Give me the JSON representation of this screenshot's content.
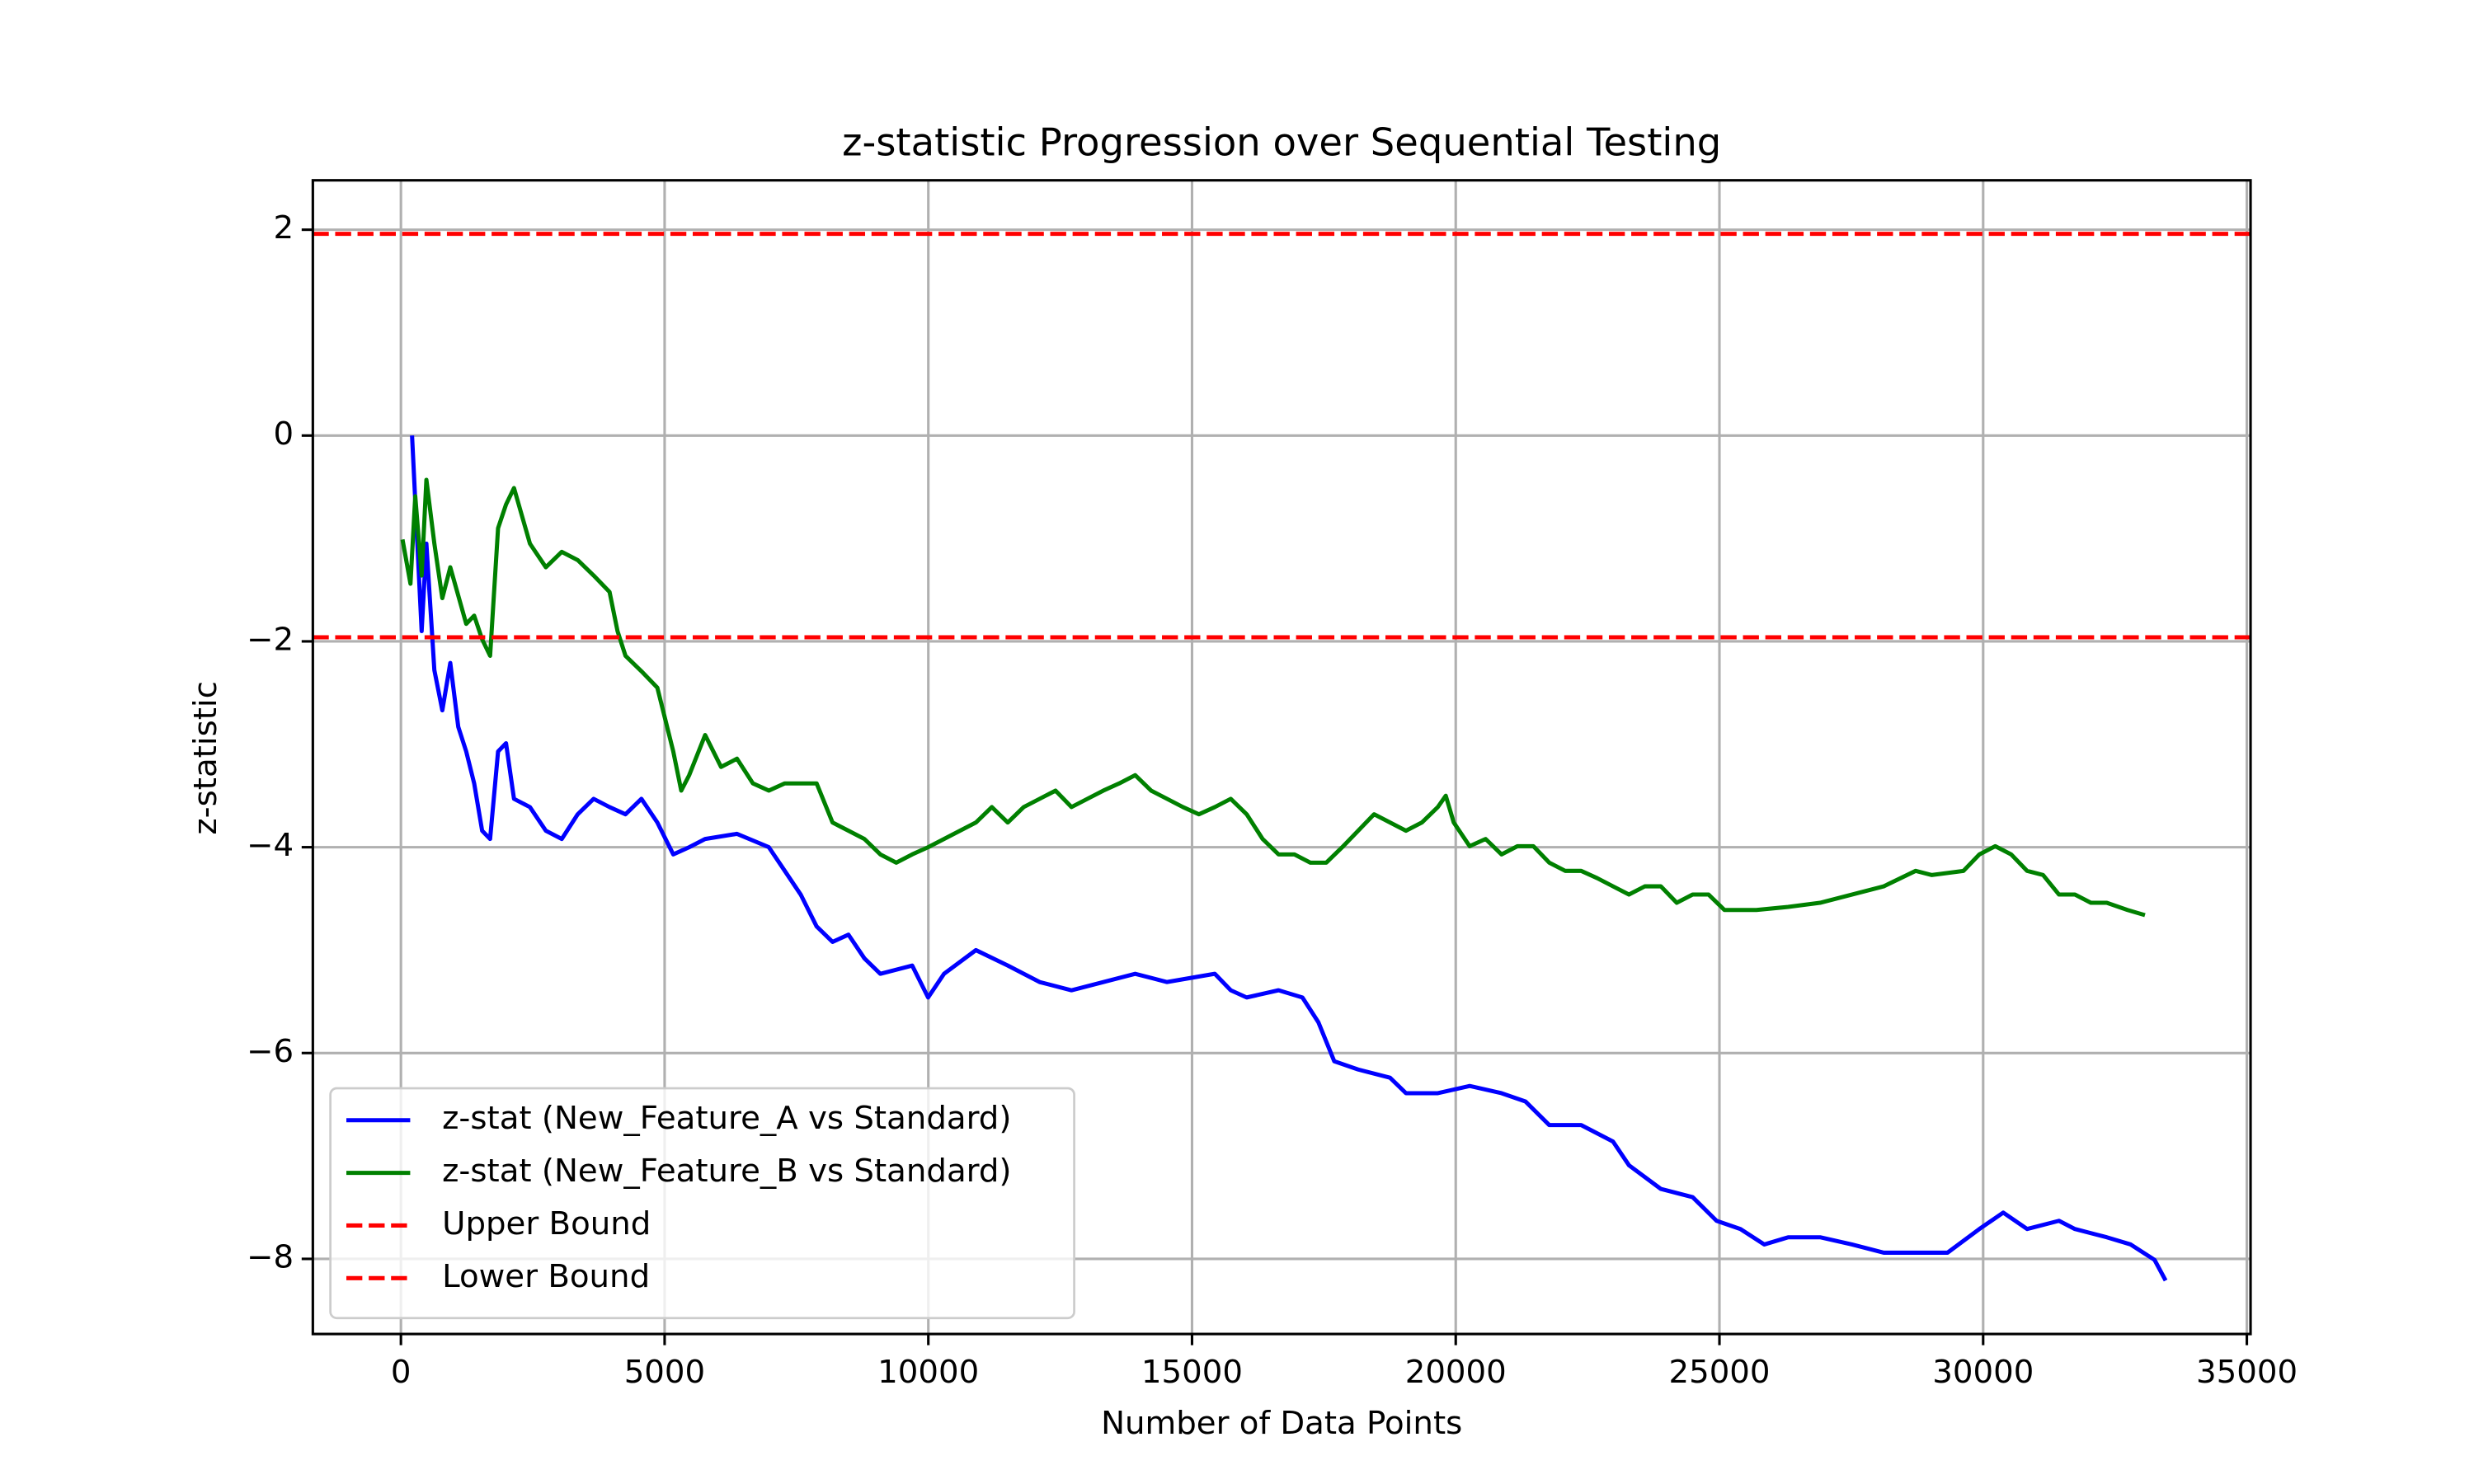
{
  "chart_data": {
    "type": "line",
    "title": "z-statistic Progression over Sequential Testing",
    "xlabel": "Number of Data Points",
    "ylabel": "z-statistic",
    "xlim": [
      -1670,
      35070
    ],
    "ylim": [
      -8.73,
      2.48
    ],
    "xticks": [
      0,
      5000,
      10000,
      15000,
      20000,
      25000,
      30000,
      35000
    ],
    "yticks": [
      {
        "value": -8,
        "label": "−8"
      },
      {
        "value": -6,
        "label": "−6"
      },
      {
        "value": -4,
        "label": "−4"
      },
      {
        "value": -2,
        "label": "−2"
      },
      0,
      2
    ],
    "grid": true,
    "legend": "lower left",
    "series": [
      {
        "name": "z-stat (New_Feature_A vs Standard)",
        "color": "#0000ff",
        "x": [
          211,
          393,
          483,
          634,
          785,
          936,
          1087,
          1238,
          1389,
          1540,
          1691,
          1842,
          1993,
          2144,
          2446,
          2748,
          3050,
          3352,
          3654,
          3956,
          4258,
          4560,
          4862,
          5164,
          5466,
          5768,
          6372,
          6976,
          7278,
          7580,
          7882,
          8184,
          8486,
          8788,
          9090,
          9694,
          9996,
          10298,
          10902,
          11506,
          12110,
          12714,
          13318,
          13922,
          14526,
          15432,
          15734,
          16036,
          16640,
          17093,
          17395,
          17697,
          18150,
          18754,
          19056,
          19660,
          20264,
          20868,
          21321,
          21774,
          22378,
          22982,
          23284,
          23888,
          24492,
          24945,
          25398,
          25851,
          26304,
          26908,
          27512,
          28116,
          28720,
          29324,
          29928,
          30381,
          30834,
          31438,
          31740,
          32344,
          32797,
          33250,
          33460
        ],
        "values": [
          0,
          -1.9,
          -1.05,
          -2.28,
          -2.67,
          -2.21,
          -2.83,
          -3.07,
          -3.38,
          -3.84,
          -3.92,
          -3.07,
          -2.99,
          -3.53,
          -3.61,
          -3.84,
          -3.92,
          -3.68,
          -3.53,
          -3.61,
          -3.68,
          -3.53,
          -3.76,
          -4.07,
          -4.0,
          -3.92,
          -3.87,
          -4.0,
          -4.23,
          -4.46,
          -4.77,
          -4.92,
          -4.85,
          -5.08,
          -5.23,
          -5.15,
          -5.46,
          -5.23,
          -5.0,
          -5.15,
          -5.31,
          -5.39,
          -5.31,
          -5.23,
          -5.31,
          -5.23,
          -5.39,
          -5.46,
          -5.39,
          -5.46,
          -5.7,
          -6.08,
          -6.16,
          -6.24,
          -6.39,
          -6.39,
          -6.32,
          -6.39,
          -6.47,
          -6.7,
          -6.7,
          -6.86,
          -7.09,
          -7.32,
          -7.4,
          -7.63,
          -7.71,
          -7.86,
          -7.79,
          -7.79,
          -7.86,
          -7.94,
          -7.94,
          -7.94,
          -7.71,
          -7.55,
          -7.71,
          -7.63,
          -7.71,
          -7.79,
          -7.86,
          -8.01,
          -8.21
        ]
      },
      {
        "name": "z-stat (New_Feature_B vs Standard)",
        "color": "#008000",
        "x": [
          30,
          181,
          272,
          393,
          483,
          634,
          785,
          936,
          1238,
          1389,
          1540,
          1691,
          1842,
          1993,
          2144,
          2446,
          2748,
          3050,
          3352,
          3654,
          3956,
          4107,
          4258,
          4560,
          4862,
          5164,
          5315,
          5466,
          5768,
          6070,
          6372,
          6674,
          6976,
          7278,
          7580,
          7882,
          8184,
          8486,
          8788,
          9090,
          9392,
          9694,
          9996,
          10298,
          10600,
          10902,
          11204,
          11506,
          11808,
          12110,
          12412,
          12714,
          13016,
          13318,
          13620,
          13922,
          14224,
          14526,
          14828,
          15130,
          15432,
          15734,
          16036,
          16338,
          16640,
          16942,
          17244,
          17546,
          17848,
          18150,
          18452,
          18754,
          19056,
          19358,
          19660,
          19811,
          19962,
          20264,
          20566,
          20868,
          21170,
          21472,
          21774,
          22076,
          22378,
          22680,
          22982,
          23284,
          23586,
          23888,
          24190,
          24492,
          24794,
          25096,
          25700,
          26304,
          26908,
          27512,
          28116,
          28720,
          29022,
          29626,
          29928,
          30230,
          30532,
          30834,
          31136,
          31438,
          31740,
          32042,
          32344,
          32737,
          33068
        ],
        "values": [
          -1.01,
          -1.44,
          -0.59,
          -1.36,
          -0.43,
          -1.05,
          -1.58,
          -1.28,
          -1.83,
          -1.75,
          -1.98,
          -2.14,
          -0.9,
          -0.67,
          -0.51,
          -1.05,
          -1.28,
          -1.13,
          -1.21,
          -1.36,
          -1.52,
          -1.9,
          -2.14,
          -2.29,
          -2.45,
          -3.07,
          -3.45,
          -3.3,
          -2.91,
          -3.22,
          -3.14,
          -3.38,
          -3.45,
          -3.38,
          -3.38,
          -3.38,
          -3.76,
          -3.84,
          -3.92,
          -4.07,
          -4.15,
          -4.07,
          -4.0,
          -3.92,
          -3.84,
          -3.76,
          -3.61,
          -3.76,
          -3.61,
          -3.53,
          -3.45,
          -3.61,
          -3.53,
          -3.45,
          -3.38,
          -3.3,
          -3.45,
          -3.53,
          -3.61,
          -3.68,
          -3.61,
          -3.53,
          -3.68,
          -3.92,
          -4.07,
          -4.07,
          -4.15,
          -4.15,
          -4.0,
          -3.84,
          -3.68,
          -3.76,
          -3.84,
          -3.76,
          -3.61,
          -3.5,
          -3.76,
          -3.99,
          -3.92,
          -4.07,
          -3.99,
          -3.99,
          -4.15,
          -4.23,
          -4.23,
          -4.3,
          -4.38,
          -4.46,
          -4.38,
          -4.38,
          -4.54,
          -4.46,
          -4.46,
          -4.61,
          -4.61,
          -4.58,
          -4.54,
          -4.46,
          -4.38,
          -4.23,
          -4.27,
          -4.23,
          -4.07,
          -3.99,
          -4.07,
          -4.23,
          -4.27,
          -4.46,
          -4.46,
          -4.54,
          -4.54,
          -4.61,
          -4.66
        ]
      }
    ],
    "hlines": [
      {
        "name": "Upper Bound",
        "color": "#ff0000",
        "value": 1.96,
        "linestyle": "dashed"
      },
      {
        "name": "Lower Bound",
        "color": "#ff0000",
        "value": -1.96,
        "linestyle": "dashed"
      }
    ]
  }
}
